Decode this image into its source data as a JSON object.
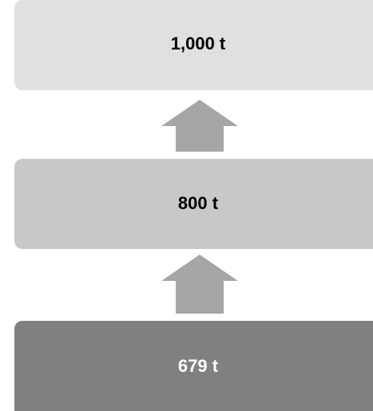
{
  "nodes": [
    {
      "label": "1,000 t"
    },
    {
      "label": "800 t"
    },
    {
      "label": "679 t"
    }
  ]
}
